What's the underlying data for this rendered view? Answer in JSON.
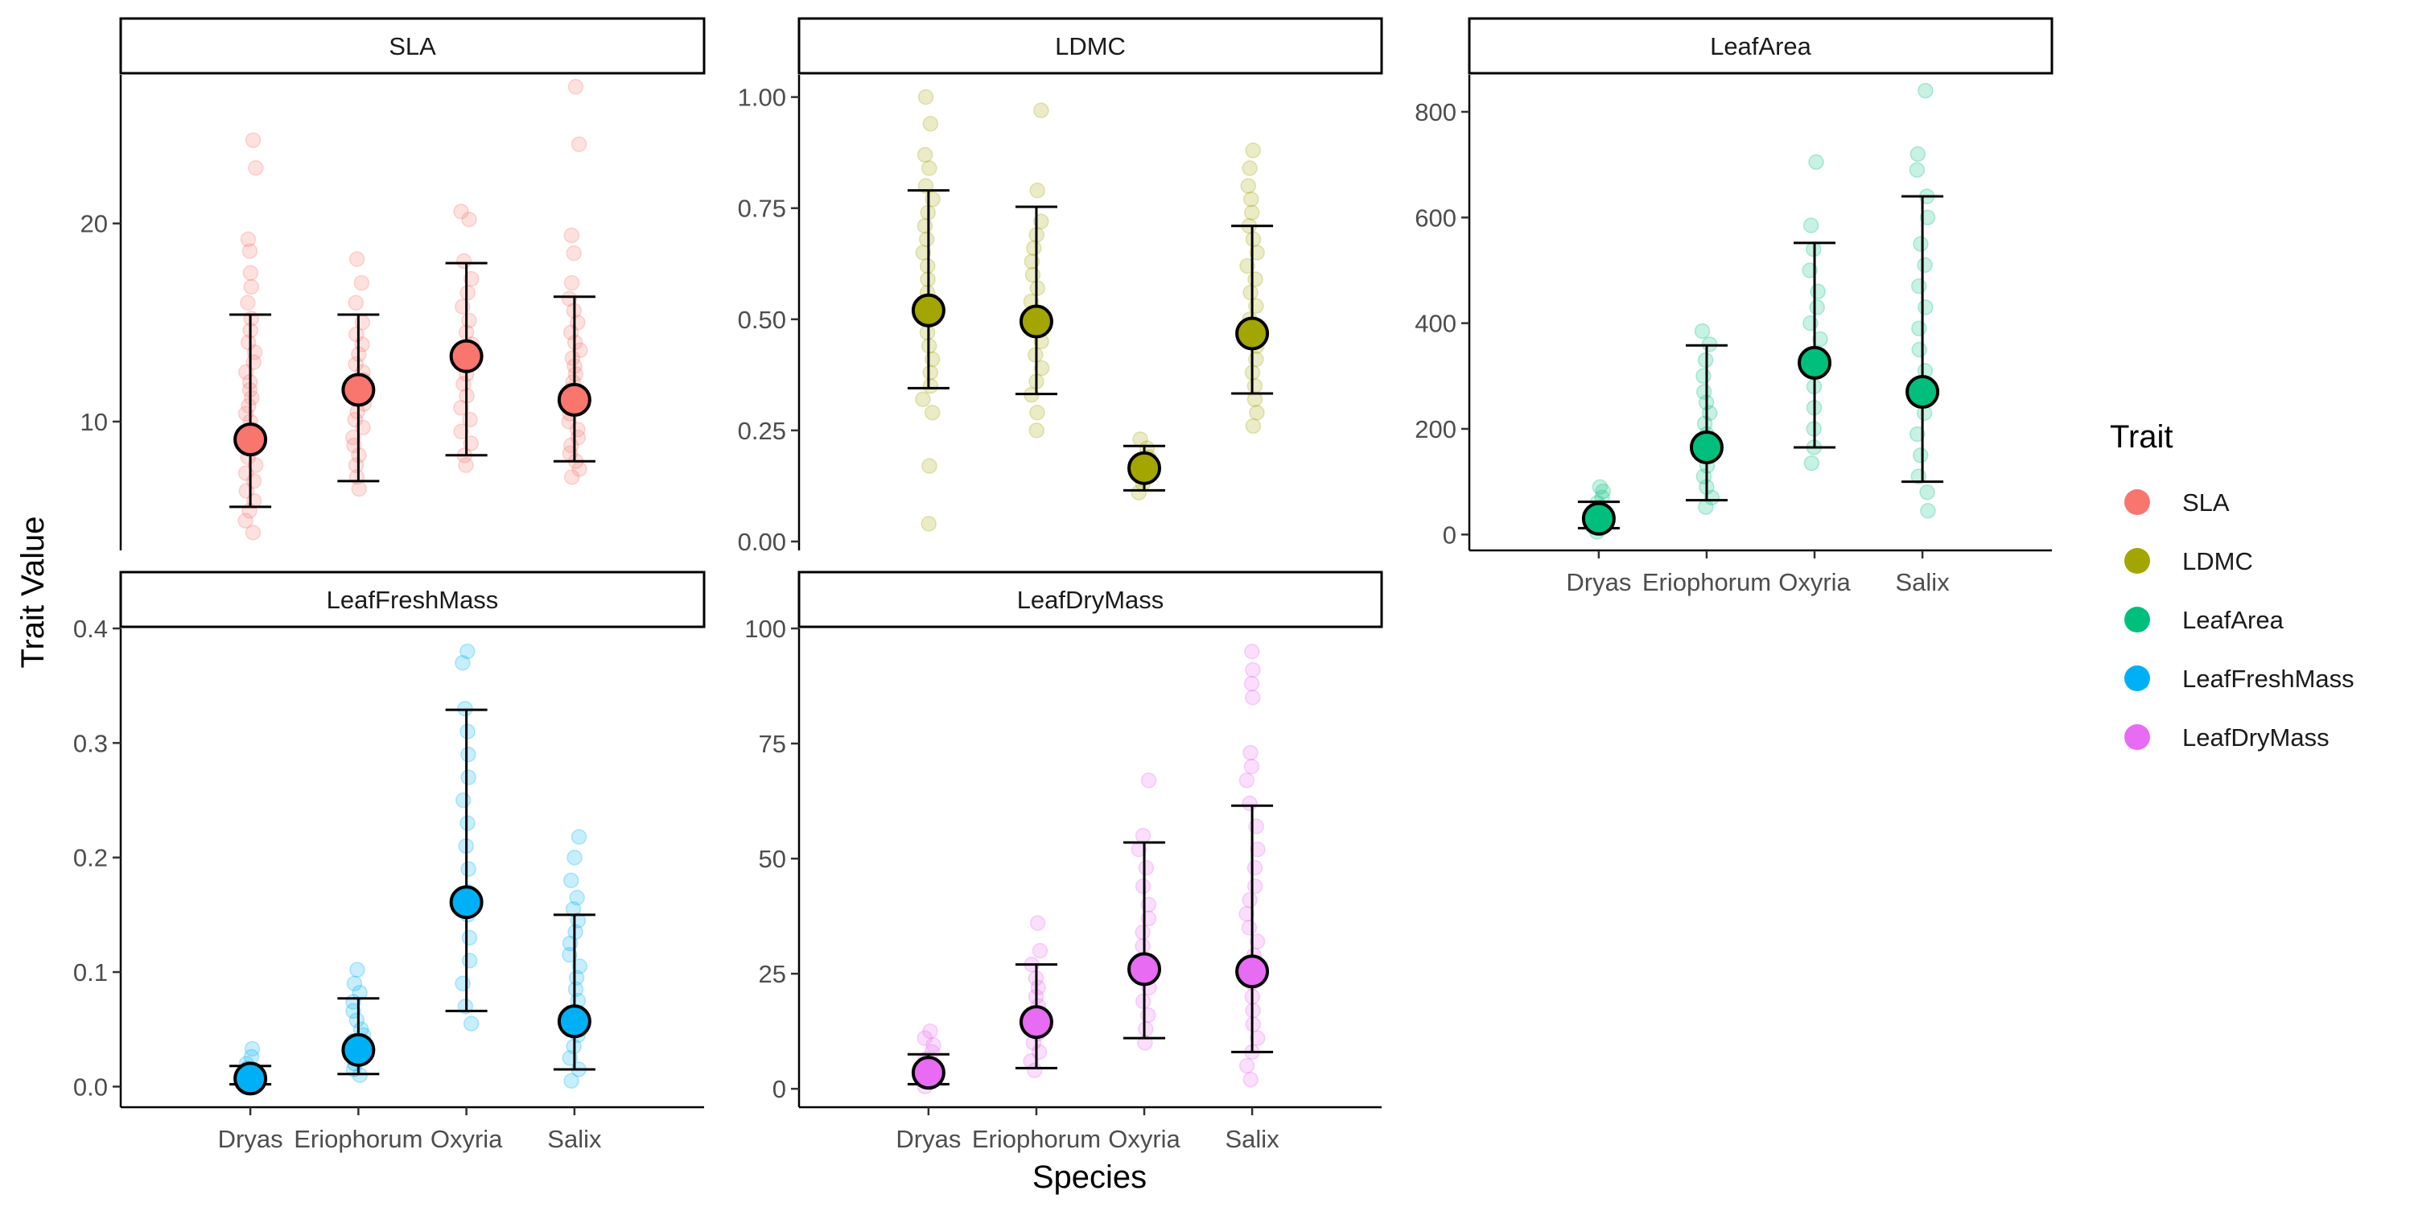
{
  "chart_data": {
    "type": "scatter",
    "xlabel": "Species",
    "ylabel": "Trait Value",
    "categories": [
      "Dryas",
      "Eriophorum",
      "Oxyria",
      "Salix"
    ],
    "legend": {
      "title": "Trait",
      "items": [
        {
          "name": "SLA",
          "color": "#F8766D"
        },
        {
          "name": "LDMC",
          "color": "#A3A500"
        },
        {
          "name": "LeafArea",
          "color": "#00BF7D"
        },
        {
          "name": "LeafFreshMass",
          "color": "#00B0F6"
        },
        {
          "name": "LeafDryMass",
          "color": "#E76BF3"
        }
      ]
    },
    "panels": [
      {
        "name": "SLA",
        "color": "#F8766D",
        "ylim": [
          3.5,
          27.5
        ],
        "yticks": [
          10,
          20
        ],
        "yticklabels": [
          "10",
          "20"
        ],
        "show_xaxis": false,
        "means": [
          9.1,
          11.6,
          13.3,
          11.1
        ],
        "lower": [
          5.7,
          7.0,
          8.3,
          8.0
        ],
        "upper": [
          15.4,
          15.4,
          18.0,
          16.3
        ],
        "points": [
          [
            4.4,
            5.0,
            5.5,
            6.0,
            6.5,
            7.0,
            7.4,
            7.8,
            8.2,
            8.6,
            9.0,
            9.3,
            9.6,
            10.0,
            10.4,
            10.8,
            11.2,
            11.6,
            12.0,
            12.5,
            13.0,
            13.5,
            14.0,
            14.6,
            15.2,
            16.0,
            16.8,
            17.5,
            18.6,
            19.2,
            22.8,
            24.2
          ],
          [
            6.6,
            7.2,
            7.8,
            8.3,
            8.8,
            9.2,
            9.7,
            10.1,
            10.5,
            10.9,
            11.3,
            11.7,
            12.1,
            12.5,
            12.9,
            13.4,
            13.9,
            14.4,
            15.0,
            16.0,
            17.0,
            18.2
          ],
          [
            7.8,
            8.3,
            8.9,
            9.5,
            10.1,
            10.7,
            11.3,
            11.9,
            12.4,
            12.9,
            13.4,
            13.9,
            14.5,
            15.1,
            15.8,
            16.5,
            17.2,
            18.1,
            20.2,
            20.6
          ],
          [
            7.2,
            7.6,
            8.0,
            8.4,
            8.8,
            9.2,
            9.6,
            10.0,
            10.4,
            10.8,
            11.2,
            11.6,
            12.0,
            12.4,
            12.8,
            13.2,
            13.6,
            14.0,
            14.5,
            15.0,
            15.6,
            16.2,
            17.0,
            18.5,
            19.4,
            24.0,
            26.9
          ]
        ]
      },
      {
        "name": "LDMC",
        "color": "#A3A500",
        "ylim": [
          -0.02,
          1.05
        ],
        "yticks": [
          0,
          0.25,
          0.5,
          0.75,
          1.0
        ],
        "yticklabels": [
          "0.00",
          "0.25",
          "0.50",
          "0.75",
          "1.00"
        ],
        "show_xaxis": false,
        "means": [
          0.52,
          0.495,
          0.165,
          0.468
        ],
        "lower": [
          0.345,
          0.332,
          0.115,
          0.333
        ],
        "upper": [
          0.79,
          0.753,
          0.215,
          0.71
        ],
        "points": [
          [
            0.04,
            0.17,
            0.29,
            0.32,
            0.35,
            0.38,
            0.41,
            0.44,
            0.47,
            0.5,
            0.53,
            0.56,
            0.59,
            0.62,
            0.65,
            0.68,
            0.71,
            0.74,
            0.77,
            0.8,
            0.84,
            0.87,
            0.94,
            1.0
          ],
          [
            0.25,
            0.29,
            0.33,
            0.36,
            0.39,
            0.42,
            0.45,
            0.48,
            0.51,
            0.54,
            0.57,
            0.6,
            0.63,
            0.66,
            0.69,
            0.72,
            0.79,
            0.97
          ],
          [
            0.11,
            0.13,
            0.15,
            0.17,
            0.19,
            0.21,
            0.23
          ],
          [
            0.26,
            0.29,
            0.32,
            0.35,
            0.38,
            0.41,
            0.44,
            0.47,
            0.5,
            0.53,
            0.56,
            0.59,
            0.62,
            0.65,
            0.68,
            0.71,
            0.74,
            0.77,
            0.8,
            0.84,
            0.88
          ]
        ]
      },
      {
        "name": "LeafArea",
        "color": "#00BF7D",
        "ylim": [
          -30,
          870
        ],
        "yticks": [
          0,
          200,
          400,
          600,
          800
        ],
        "yticklabels": [
          "0",
          "200",
          "400",
          "600",
          "800"
        ],
        "show_xaxis": true,
        "means": [
          30,
          165,
          325,
          270
        ],
        "lower": [
          12,
          65,
          165,
          100
        ],
        "upper": [
          62,
          358,
          552,
          640
        ],
        "points": [
          [
            5,
            12,
            18,
            25,
            32,
            38,
            45,
            52,
            60,
            70,
            82,
            90
          ],
          [
            52,
            70,
            90,
            110,
            130,
            150,
            170,
            190,
            210,
            230,
            250,
            270,
            300,
            330,
            360,
            385
          ],
          [
            135,
            165,
            200,
            240,
            280,
            310,
            340,
            370,
            400,
            430,
            460,
            500,
            540,
            585,
            705
          ],
          [
            45,
            80,
            110,
            150,
            190,
            230,
            270,
            310,
            350,
            390,
            430,
            470,
            510,
            550,
            600,
            640,
            690,
            720,
            840
          ]
        ]
      },
      {
        "name": "LeafFreshMass",
        "color": "#00B0F6",
        "ylim": [
          -0.018,
          0.4
        ],
        "yticks": [
          0,
          0.1,
          0.2,
          0.3,
          0.4
        ],
        "yticklabels": [
          "0.0",
          "0.1",
          "0.2",
          "0.3",
          "0.4"
        ],
        "show_xaxis": true,
        "means": [
          0.007,
          0.032,
          0.161,
          0.057
        ],
        "lower": [
          0.002,
          0.011,
          0.066,
          0.015
        ],
        "upper": [
          0.018,
          0.077,
          0.329,
          0.15
        ],
        "points": [
          [
            0.0,
            0.003,
            0.006,
            0.009,
            0.012,
            0.016,
            0.02,
            0.026,
            0.033
          ],
          [
            0.01,
            0.015,
            0.02,
            0.025,
            0.03,
            0.035,
            0.04,
            0.045,
            0.05,
            0.058,
            0.066,
            0.074,
            0.082,
            0.09,
            0.102
          ],
          [
            0.055,
            0.07,
            0.09,
            0.11,
            0.13,
            0.15,
            0.17,
            0.19,
            0.21,
            0.23,
            0.25,
            0.27,
            0.29,
            0.31,
            0.33,
            0.37,
            0.38
          ],
          [
            0.005,
            0.015,
            0.025,
            0.035,
            0.045,
            0.055,
            0.065,
            0.075,
            0.085,
            0.095,
            0.105,
            0.115,
            0.125,
            0.135,
            0.145,
            0.155,
            0.165,
            0.18,
            0.2,
            0.218
          ]
        ]
      },
      {
        "name": "LeafDryMass",
        "color": "#E76BF3",
        "ylim": [
          -4,
          100
        ],
        "yticks": [
          0,
          25,
          50,
          75,
          100
        ],
        "yticklabels": [
          "0",
          "25",
          "50",
          "75",
          "100"
        ],
        "show_xaxis": true,
        "means": [
          3.5,
          14.5,
          26,
          25.5
        ],
        "lower": [
          1,
          4.5,
          11,
          8
        ],
        "upper": [
          7.5,
          27,
          53.5,
          61.5
        ],
        "points": [
          [
            0.5,
            1.5,
            2.5,
            3.5,
            4.5,
            5.5,
            6.5,
            8,
            9.5,
            11,
            12.5
          ],
          [
            4,
            6,
            8,
            10,
            12,
            14,
            16,
            18,
            20,
            22,
            24,
            27,
            30,
            36
          ],
          [
            10,
            13,
            16,
            19,
            22,
            25,
            28,
            31,
            34,
            37,
            40,
            44,
            48,
            52,
            55,
            67
          ],
          [
            2,
            5,
            8,
            11,
            14,
            17,
            20,
            23,
            26,
            29,
            32,
            35,
            38,
            41,
            44,
            48,
            52,
            57,
            62,
            67,
            70,
            73,
            85,
            88,
            91,
            95
          ]
        ]
      }
    ]
  }
}
